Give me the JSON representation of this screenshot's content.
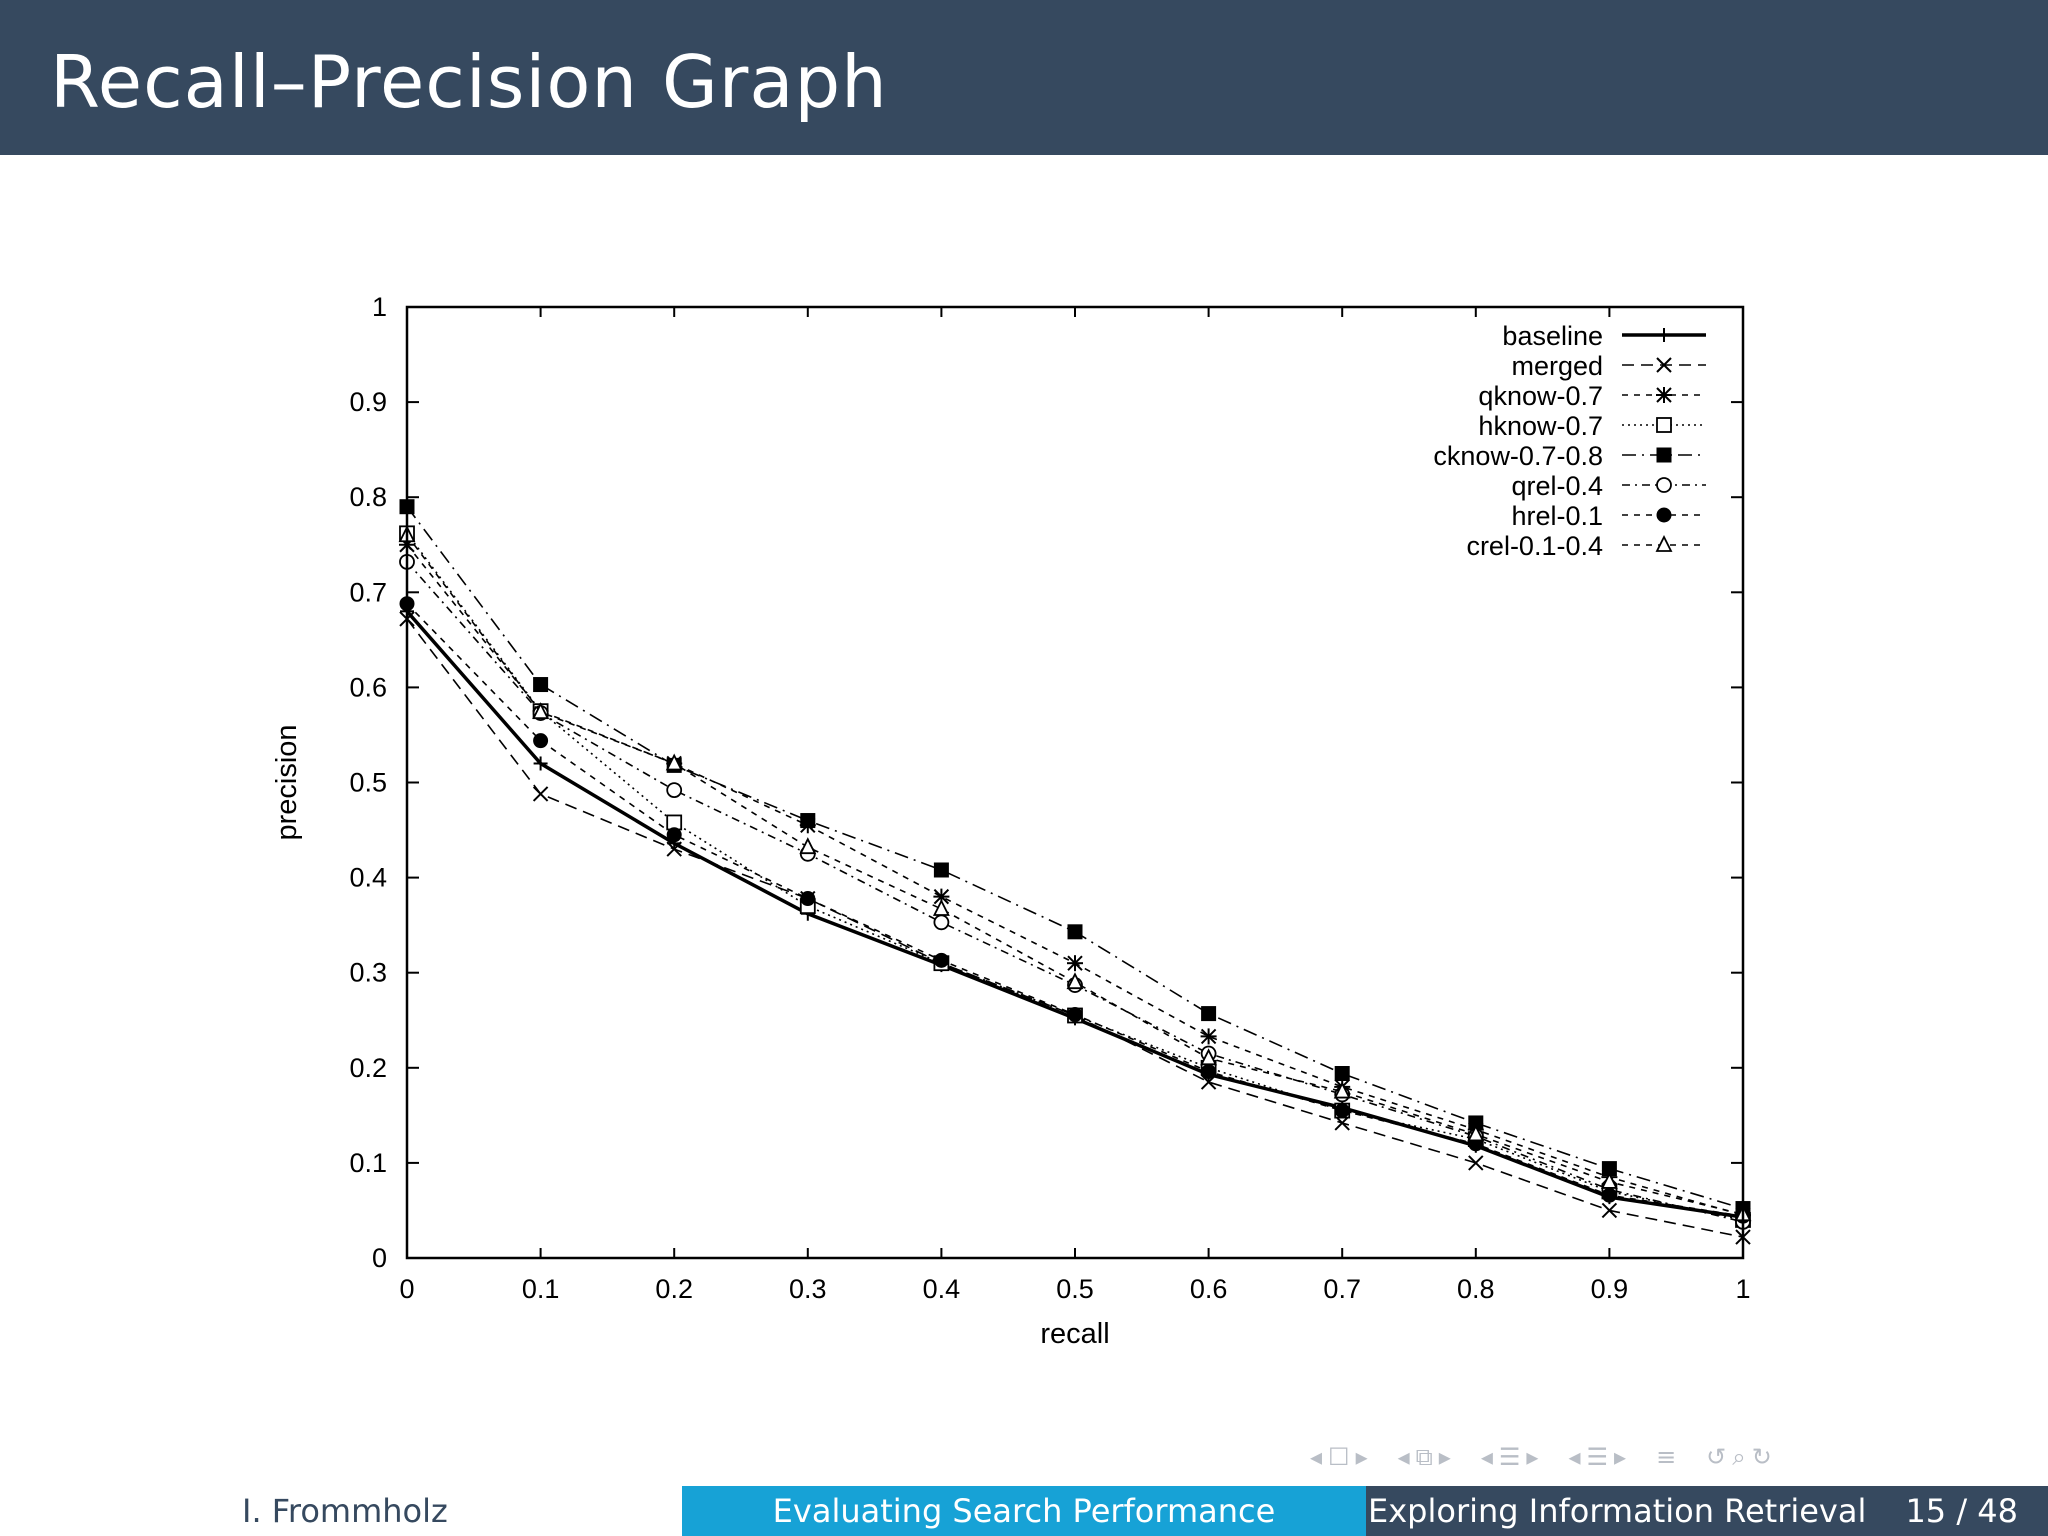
{
  "slide": {
    "title": "Recall–Precision Graph"
  },
  "chart_data": {
    "type": "line",
    "title": "",
    "xlabel": "recall",
    "ylabel": "precision",
    "xlim": [
      0,
      1
    ],
    "ylim": [
      0,
      1
    ],
    "x_ticks": [
      "0",
      "0.1",
      "0.2",
      "0.3",
      "0.4",
      "0.5",
      "0.6",
      "0.7",
      "0.8",
      "0.9",
      "1"
    ],
    "y_ticks": [
      "0",
      "0.1",
      "0.2",
      "0.3",
      "0.4",
      "0.5",
      "0.6",
      "0.7",
      "0.8",
      "0.9",
      "1"
    ],
    "grid": false,
    "legend_position": "top-right",
    "x": [
      0,
      0.1,
      0.2,
      0.3,
      0.4,
      0.5,
      0.6,
      0.7,
      0.8,
      0.9,
      1
    ],
    "series": [
      {
        "name": "baseline",
        "marker": "plus",
        "dash": "solid",
        "values": [
          0.68,
          0.52,
          0.436,
          0.362,
          0.308,
          0.252,
          0.193,
          0.158,
          0.118,
          0.064,
          0.043
        ]
      },
      {
        "name": "merged",
        "marker": "x",
        "dash": "dashed",
        "values": [
          0.672,
          0.488,
          0.43,
          0.378,
          0.31,
          0.255,
          0.185,
          0.142,
          0.1,
          0.05,
          0.022
        ]
      },
      {
        "name": "qknow-0.7",
        "marker": "star",
        "dash": "dashed-short",
        "values": [
          0.75,
          0.575,
          0.52,
          0.455,
          0.38,
          0.31,
          0.233,
          0.18,
          0.135,
          0.085,
          0.045
        ]
      },
      {
        "name": "hknow-0.7",
        "marker": "square-open",
        "dash": "dotted",
        "values": [
          0.762,
          0.575,
          0.458,
          0.37,
          0.31,
          0.255,
          0.2,
          0.155,
          0.125,
          0.07,
          0.04
        ]
      },
      {
        "name": "cknow-0.7-0.8",
        "marker": "square-filled",
        "dash": "dash-dot",
        "values": [
          0.79,
          0.603,
          0.518,
          0.46,
          0.408,
          0.343,
          0.257,
          0.194,
          0.142,
          0.094,
          0.052
        ]
      },
      {
        "name": "qrel-0.4",
        "marker": "circle-open",
        "dash": "dash-dot-short",
        "values": [
          0.732,
          0.573,
          0.492,
          0.425,
          0.353,
          0.287,
          0.215,
          0.172,
          0.128,
          0.072,
          0.038
        ]
      },
      {
        "name": "hrel-0.1",
        "marker": "circle-filled",
        "dash": "dashed-short",
        "values": [
          0.688,
          0.544,
          0.445,
          0.378,
          0.313,
          0.256,
          0.196,
          0.155,
          0.12,
          0.066,
          0.044
        ]
      },
      {
        "name": "crel-0.1-0.4",
        "marker": "triangle-open",
        "dash": "dashed-short",
        "values": [
          0.76,
          0.574,
          0.52,
          0.432,
          0.367,
          0.29,
          0.21,
          0.175,
          0.13,
          0.08,
          0.046
        ]
      }
    ]
  },
  "footer": {
    "author": "I. Frommholz",
    "section": "Evaluating Search Performance",
    "talk_title": "Exploring Information Retrieval",
    "page": "15 / 48"
  },
  "nav": {
    "icons": [
      "arrow-left-icon",
      "frame-icon",
      "arrow-right-icon",
      "arrow-left-icon",
      "subsection-icon",
      "arrow-right-icon",
      "arrow-left-icon",
      "section-icon",
      "arrow-right-icon",
      "arrow-left-icon",
      "subsubsection-icon",
      "arrow-right-icon",
      "align-icon",
      "undo-icon",
      "search-icon",
      "redo-icon"
    ]
  }
}
